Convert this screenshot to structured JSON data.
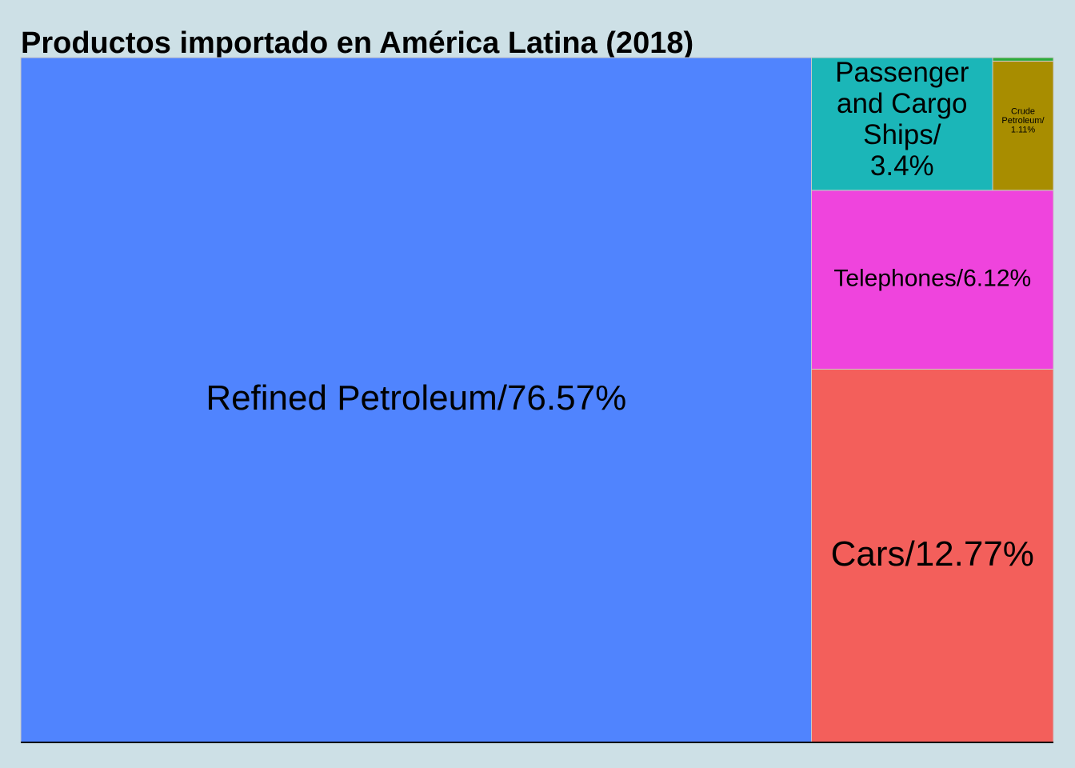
{
  "chart_data": {
    "type": "treemap",
    "title": "Productos importado en América Latina (2018)",
    "items": [
      {
        "name": "Refined Petroleum",
        "value": 76.57,
        "label": [
          "Refined Petroleum/76.57%"
        ],
        "color": "#5084fe"
      },
      {
        "name": "Cars",
        "value": 12.77,
        "label": [
          "Cars/12.77%"
        ],
        "color": "#f35f5b"
      },
      {
        "name": "Telephones",
        "value": 6.12,
        "label": [
          "Telephones/6.12%"
        ],
        "color": "#ef44dd"
      },
      {
        "name": "Passenger and Cargo Ships",
        "value": 3.4,
        "label": [
          "Passenger",
          "and Cargo",
          "Ships/",
          "3.4%"
        ],
        "color": "#1bb6b8"
      },
      {
        "name": "Crude Petroleum",
        "value": 1.11,
        "label": [
          "Crude",
          "Petroleum/",
          "1.11%"
        ],
        "color": "#a88d00"
      },
      {
        "name": "",
        "value": 0.03,
        "label": [],
        "color": "#2bab3a"
      }
    ]
  }
}
